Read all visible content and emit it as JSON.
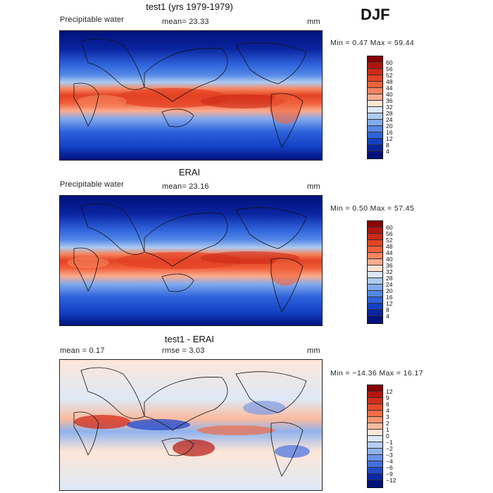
{
  "season": "DJF",
  "panels": [
    {
      "title": "test1 (yrs 1979-1979)",
      "variable": "Precipitable water",
      "stat_left": "mean=   23.33",
      "units": "mm",
      "minmax": "Min =    0.47 Max =  59.44",
      "colorbar": {
        "labels": [
          "60",
          "56",
          "52",
          "48",
          "44",
          "40",
          "36",
          "32",
          "28",
          "24",
          "20",
          "16",
          "12",
          "8",
          "4"
        ],
        "colors": [
          "#8b0000",
          "#b2150e",
          "#cd2a18",
          "#e34224",
          "#f0603a",
          "#f7845e",
          "#fbac8e",
          "#fde3d6",
          "#dce8f7",
          "#aecbf0",
          "#82aaec",
          "#5488e6",
          "#2e63dc",
          "#1240c4",
          "#0a24a0",
          "#00127a"
        ]
      }
    },
    {
      "title": "ERAI",
      "variable": "Precipitable water",
      "stat_left": "mean=   23.16",
      "units": "mm",
      "minmax": "Min =    0.50 Max =  57.45",
      "colorbar": {
        "labels": [
          "60",
          "56",
          "52",
          "48",
          "44",
          "40",
          "36",
          "32",
          "28",
          "24",
          "20",
          "16",
          "12",
          "8",
          "4"
        ],
        "colors": [
          "#8b0000",
          "#b2150e",
          "#cd2a18",
          "#e34224",
          "#f0603a",
          "#f7845e",
          "#fbac8e",
          "#fde3d6",
          "#dce8f7",
          "#aecbf0",
          "#82aaec",
          "#5488e6",
          "#2e63dc",
          "#1240c4",
          "#0a24a0",
          "#00127a"
        ]
      }
    },
    {
      "title": "test1 - ERAI",
      "variable": "mean =    0.17",
      "stat_left": "rmse =    3.03",
      "units": "mm",
      "minmax": "Min = −14.36 Max =  16.17",
      "colorbar": {
        "labels": [
          "12",
          "9",
          "6",
          "4",
          "3",
          "2",
          "1",
          "0",
          "−1",
          "−2",
          "−3",
          "−4",
          "−6",
          "−9",
          "−12"
        ],
        "colors": [
          "#8b0000",
          "#b5170f",
          "#d32e1c",
          "#e84a2b",
          "#f36d47",
          "#f89470",
          "#fbbb9e",
          "#fde6d8",
          "#dde9f7",
          "#b6cff1",
          "#8fb3ee",
          "#6a93e8",
          "#456fdf",
          "#2248c9",
          "#0c28a4",
          "#00127a"
        ]
      }
    }
  ]
}
